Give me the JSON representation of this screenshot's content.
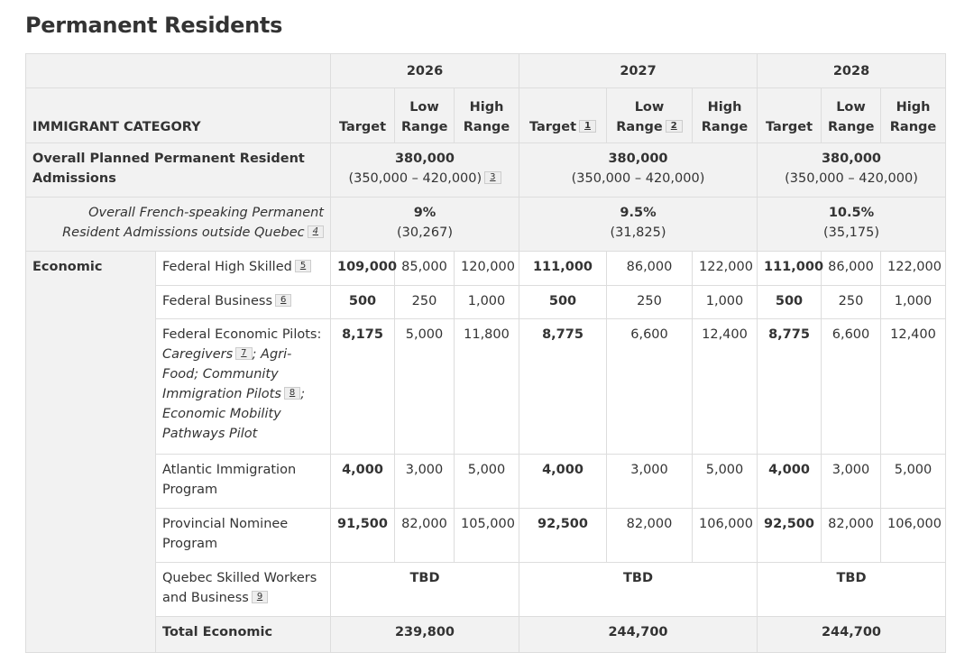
{
  "title": "Permanent Residents",
  "years": [
    "2026",
    "2027",
    "2028"
  ],
  "header": {
    "category": "IMMIGRANT CATEGORY",
    "target": "Target",
    "low": "Low Range",
    "high": "High Range",
    "fn_target_2027": "1",
    "fn_low_2027": "2"
  },
  "overall": {
    "label": "Overall Planned Permanent Resident Admissions",
    "values": [
      "380,000",
      "380,000",
      "380,000"
    ],
    "ranges": [
      "(350,000 – 420,000)",
      "(350,000 – 420,000)",
      "(350,000 – 420,000)"
    ],
    "fn": "3"
  },
  "french": {
    "label": "Overall French-speaking Permanent Resident Admissions outside Quebec",
    "fn": "4",
    "values": [
      "9%",
      "9.5%",
      "10.5%"
    ],
    "counts": [
      "(30,267)",
      "(31,825)",
      "(35,175)"
    ]
  },
  "economic": {
    "label": "Economic",
    "rows": [
      {
        "name": "Federal High Skilled",
        "fn": "5",
        "v": [
          "109,000",
          "85,000",
          "120,000",
          "111,000",
          "86,000",
          "122,000",
          "111,000",
          "86,000",
          "122,000"
        ]
      },
      {
        "name": "Federal Business",
        "fn": "6",
        "v": [
          "500",
          "250",
          "1,000",
          "500",
          "250",
          "1,000",
          "500",
          "250",
          "1,000"
        ]
      },
      {
        "name": "Federal Economic Pilots:",
        "p1": "Caregivers",
        "fn": "7",
        "p2": "; Agri-Food; Community Immigration Pilots",
        "fn2": "8",
        "p3": "; Economic Mobility Pathways Pilot",
        "v": [
          "8,175",
          "5,000",
          "11,800",
          "8,775",
          "6,600",
          "12,400",
          "8,775",
          "6,600",
          "12,400"
        ]
      },
      {
        "name": "Atlantic Immigration Program",
        "v": [
          "4,000",
          "3,000",
          "5,000",
          "4,000",
          "3,000",
          "5,000",
          "4,000",
          "3,000",
          "5,000"
        ]
      },
      {
        "name": "Provincial Nominee Program",
        "v": [
          "91,500",
          "82,000",
          "105,000",
          "92,500",
          "82,000",
          "106,000",
          "92,500",
          "82,000",
          "106,000"
        ]
      }
    ],
    "quebec": {
      "name": "Quebec Skilled Workers and Business",
      "fn": "9",
      "v": [
        "TBD",
        "TBD",
        "TBD"
      ]
    },
    "total": {
      "name": "Total Economic",
      "v": [
        "239,800",
        "244,700",
        "244,700"
      ]
    }
  }
}
